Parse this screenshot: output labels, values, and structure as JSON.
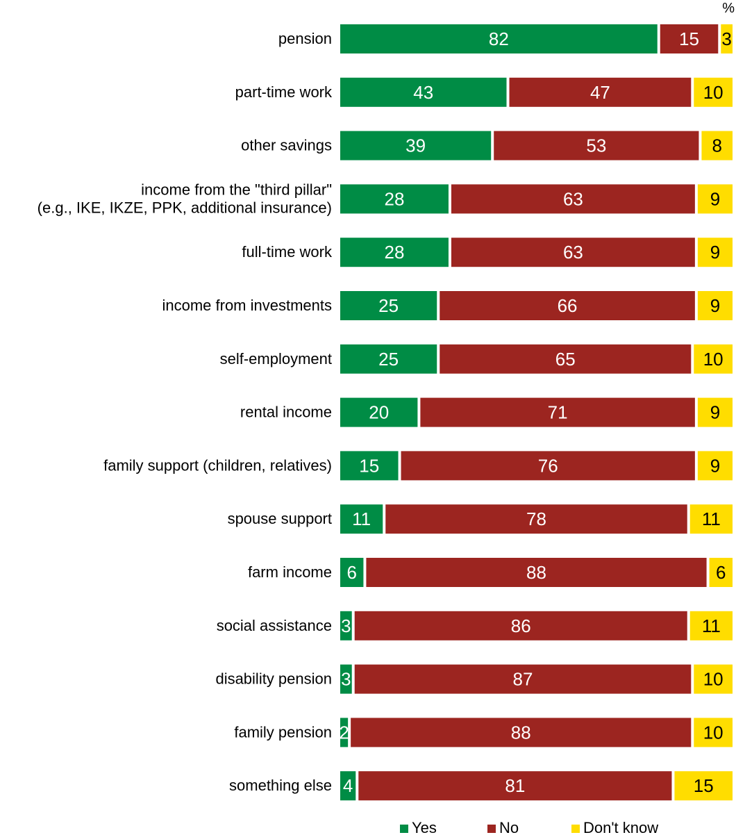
{
  "chart_data": {
    "type": "bar",
    "orientation": "horizontal",
    "stacked": true,
    "unit": "%",
    "categories": [
      [
        "pension"
      ],
      [
        "part-time work"
      ],
      [
        "other savings"
      ],
      [
        "income from the \"third pillar\"",
        "(e.g., IKE, IKZE, PPK, additional insurance)"
      ],
      [
        "full-time work"
      ],
      [
        "income from investments"
      ],
      [
        "self-employment"
      ],
      [
        "rental income"
      ],
      [
        "family support (children, relatives)"
      ],
      [
        "spouse support"
      ],
      [
        "farm income"
      ],
      [
        "social assistance"
      ],
      [
        "disability pension"
      ],
      [
        "family pension"
      ],
      [
        "something else"
      ]
    ],
    "series": [
      {
        "name": "Yes",
        "color": "#008c45",
        "values": [
          82,
          43,
          39,
          28,
          28,
          25,
          25,
          20,
          15,
          11,
          6,
          3,
          3,
          2,
          4
        ]
      },
      {
        "name": "No",
        "color": "#9c2520",
        "values": [
          15,
          47,
          53,
          63,
          63,
          66,
          65,
          71,
          76,
          78,
          88,
          86,
          87,
          88,
          81
        ]
      },
      {
        "name": "Don't know",
        "color": "#ffdd00",
        "values": [
          3,
          10,
          8,
          9,
          9,
          9,
          10,
          9,
          9,
          11,
          6,
          11,
          10,
          10,
          15
        ]
      }
    ],
    "label_colors": [
      "#ffffff",
      "#ffffff",
      "#000000"
    ],
    "xlim": [
      0,
      100
    ],
    "legend_position": "bottom",
    "grid": false
  }
}
